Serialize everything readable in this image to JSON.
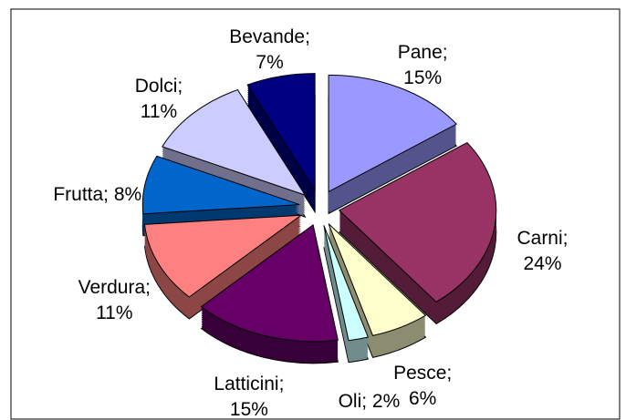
{
  "chart_data": {
    "type": "pie",
    "categories": [
      "Pane",
      "Carni",
      "Pesce",
      "Oli",
      "Latticini",
      "Verdura",
      "Frutta",
      "Dolci",
      "Bevande"
    ],
    "values": [
      15,
      24,
      6,
      2,
      15,
      11,
      8,
      11,
      7
    ],
    "value_labels": [
      "Pane; 15%",
      "Carni; 24%",
      "Pesce; 6%",
      "Oli; 2%",
      "Latticini; 15%",
      "Verdura; 11%",
      "Frutta; 8%",
      "Dolci; 11%",
      "Bevande; 7%"
    ],
    "colors": [
      "#9999ff",
      "#993366",
      "#ffffcc",
      "#ccffff",
      "#660066",
      "#ff8080",
      "#0066cc",
      "#ccccff",
      "#000080"
    ]
  }
}
